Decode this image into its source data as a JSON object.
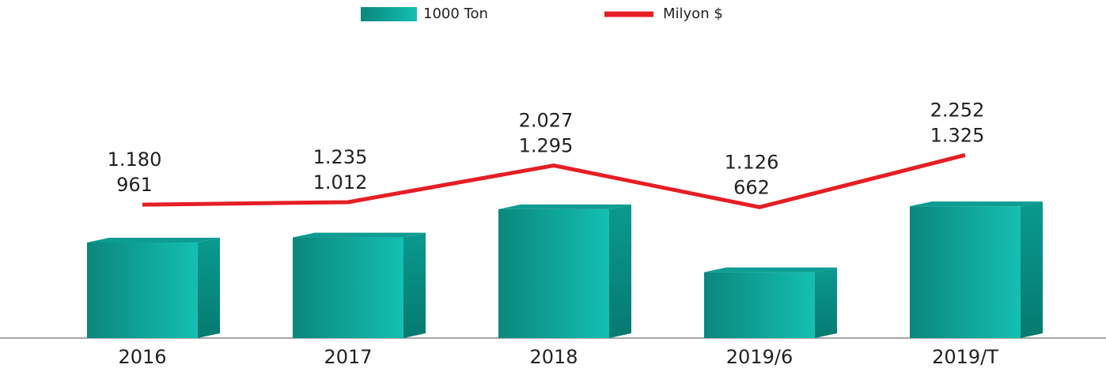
{
  "chart_data": {
    "type": "bar",
    "categories": [
      "2016",
      "2017",
      "2018",
      "2019/6",
      "2019/T"
    ],
    "series": [
      {
        "name": "1000 Ton",
        "color": "#0fa89c",
        "values": [
          961,
          1012,
          1295,
          662,
          1325
        ],
        "value_labels": [
          "961",
          "1.012",
          "1.295",
          "662",
          "1.325"
        ]
      },
      {
        "name": "Milyon $",
        "color": "#e61e25",
        "type": "line",
        "axis": "y2",
        "values": [
          1180,
          1235,
          2027,
          1126,
          2252
        ],
        "value_labels": [
          "1.180",
          "1.235",
          "2.027",
          "1.126",
          "2.252"
        ]
      }
    ],
    "ylim": [
      0,
      2700
    ],
    "y2lim": [
      -1700,
      4100
    ]
  }
}
